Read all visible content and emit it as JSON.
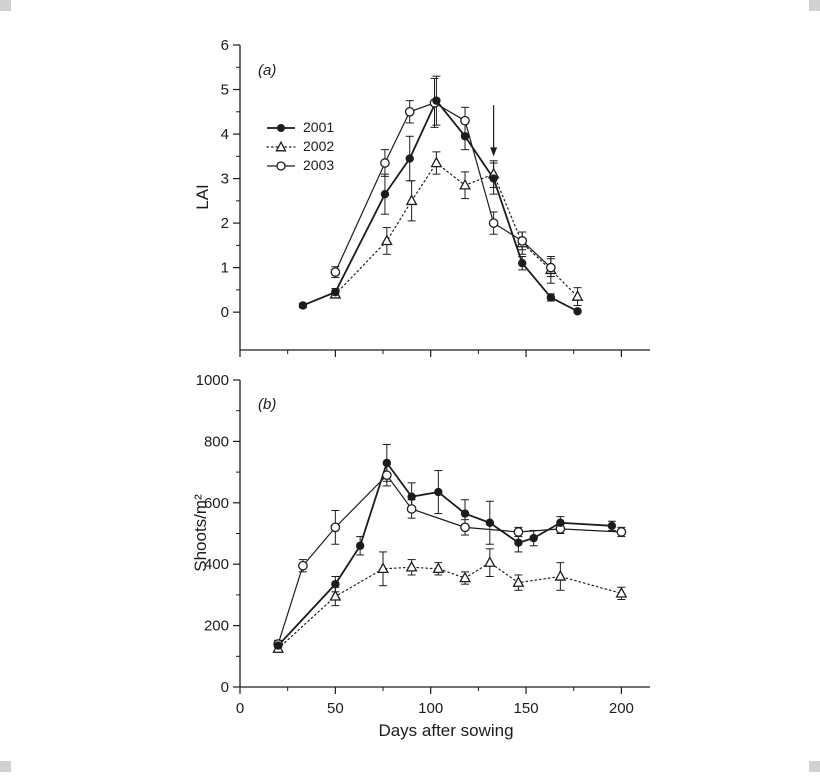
{
  "figure": {
    "ink_color": "#1c1c1c",
    "background": "#ffffff"
  },
  "chart_data": [
    {
      "type": "line",
      "panel_label": "(a)",
      "ylabel": "LAI",
      "xlabel": "Days after sowing",
      "xlim": [
        0,
        215
      ],
      "ylim": [
        0,
        6
      ],
      "xticks": [
        0,
        50,
        100,
        150,
        200
      ],
      "yticks": [
        0,
        1,
        2,
        3,
        4,
        5,
        6
      ],
      "x_tick_labels_visible": false,
      "grid": false,
      "legend_position": "upper left inside",
      "annotations": [
        {
          "type": "down-arrow",
          "x": 133,
          "y_from": 4.65,
          "y_to": 3.5
        }
      ],
      "series": [
        {
          "name": "2001",
          "marker": "filled-circle",
          "line": "solid",
          "x": [
            33,
            50,
            76,
            89,
            103,
            118,
            133,
            148,
            163,
            177
          ],
          "y": [
            0.15,
            0.45,
            2.65,
            3.45,
            4.75,
            3.95,
            3.0,
            1.1,
            0.33,
            0.02
          ],
          "err": [
            0.05,
            0.08,
            0.45,
            0.5,
            0.55,
            0.3,
            0.35,
            0.15,
            0.08,
            0.03
          ]
        },
        {
          "name": "2002",
          "marker": "open-triangle",
          "line": "dotted",
          "x": [
            50,
            77,
            90,
            103,
            118,
            133,
            148,
            163,
            177
          ],
          "y": [
            0.4,
            1.6,
            2.5,
            3.35,
            2.85,
            3.1,
            1.55,
            0.95,
            0.35
          ],
          "err": [
            0.08,
            0.3,
            0.45,
            0.25,
            0.3,
            0.3,
            0.25,
            0.3,
            0.2
          ]
        },
        {
          "name": "2003",
          "marker": "open-circle",
          "line": "solid",
          "x": [
            50,
            76,
            89,
            102,
            118,
            133,
            148,
            163
          ],
          "y": [
            0.9,
            3.35,
            4.5,
            4.7,
            4.3,
            2.0,
            1.6,
            1.0
          ],
          "err": [
            0.12,
            0.3,
            0.25,
            0.55,
            0.3,
            0.25,
            0.2,
            0.2
          ]
        }
      ]
    },
    {
      "type": "line",
      "panel_label": "(b)",
      "ylabel": "Shoots/m²",
      "xlabel": "Days after sowing",
      "xlim": [
        0,
        215
      ],
      "ylim": [
        0,
        1000
      ],
      "xticks": [
        0,
        50,
        100,
        150,
        200
      ],
      "yticks": [
        0,
        200,
        400,
        600,
        800,
        1000
      ],
      "x_tick_labels_visible": true,
      "grid": false,
      "series": [
        {
          "name": "2001",
          "marker": "filled-circle",
          "line": "solid",
          "x": [
            20,
            50,
            63,
            77,
            90,
            104,
            118,
            131,
            146,
            154,
            168,
            195
          ],
          "y": [
            135,
            335,
            460,
            730,
            620,
            635,
            565,
            535,
            470,
            485,
            535,
            525
          ],
          "err": [
            15,
            25,
            30,
            60,
            45,
            70,
            45,
            70,
            30,
            25,
            20,
            15
          ]
        },
        {
          "name": "2002",
          "marker": "open-triangle",
          "line": "dotted",
          "x": [
            20,
            50,
            75,
            90,
            104,
            118,
            131,
            146,
            168,
            200
          ],
          "y": [
            125,
            295,
            385,
            390,
            385,
            355,
            405,
            340,
            360,
            305
          ],
          "err": [
            12,
            30,
            55,
            25,
            20,
            20,
            45,
            25,
            45,
            20
          ]
        },
        {
          "name": "2003",
          "marker": "open-circle",
          "line": "solid",
          "x": [
            20,
            33,
            50,
            77,
            90,
            118,
            146,
            168,
            200
          ],
          "y": [
            140,
            395,
            520,
            690,
            580,
            520,
            505,
            515,
            505
          ],
          "err": [
            12,
            20,
            55,
            35,
            30,
            25,
            15,
            15,
            15
          ]
        }
      ]
    }
  ]
}
